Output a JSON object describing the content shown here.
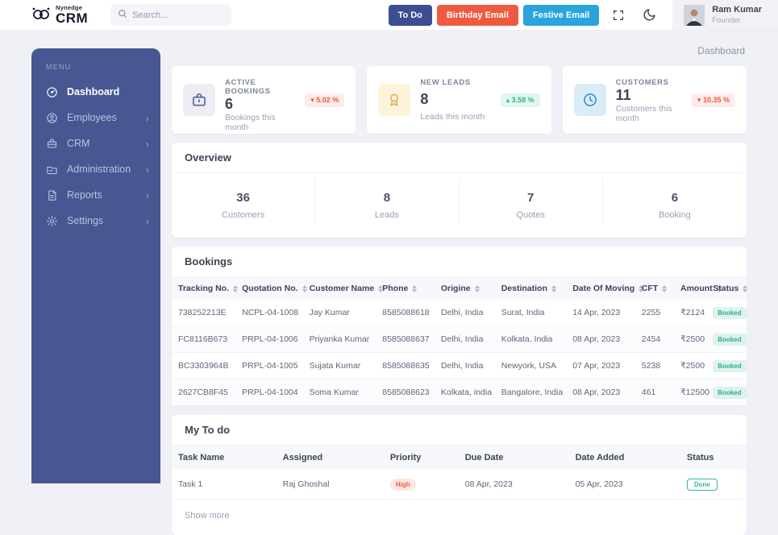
{
  "header": {
    "logo": {
      "brand_top": "Nynedge",
      "brand_main": "CRM"
    },
    "search": {
      "placeholder": "Search..."
    },
    "buttons": [
      {
        "label": "To Do",
        "color": "#3c4d90"
      },
      {
        "label": "Birthday Email",
        "color": "#ee5a40"
      },
      {
        "label": "Festive Email",
        "color": "#29a4dc"
      }
    ],
    "user": {
      "name": "Ram Kumar",
      "role": "Founder"
    }
  },
  "breadcrumb": "Dashboard",
  "sidebar": {
    "menu_label": "MENU",
    "items": [
      {
        "label": "Dashboard",
        "icon": "dashboard-icon",
        "active": true,
        "has_children": false
      },
      {
        "label": "Employees",
        "icon": "employees-icon",
        "active": false,
        "has_children": true
      },
      {
        "label": "CRM",
        "icon": "crm-icon",
        "active": false,
        "has_children": true
      },
      {
        "label": "Administration",
        "icon": "administration-icon",
        "active": false,
        "has_children": true
      },
      {
        "label": "Reports",
        "icon": "reports-icon",
        "active": false,
        "has_children": true
      },
      {
        "label": "Settings",
        "icon": "settings-icon",
        "active": false,
        "has_children": true
      }
    ]
  },
  "stats": [
    {
      "label": "ACTIVE BOOKINGS",
      "value": "6",
      "sub": "Bookings this month",
      "change": "5.02 %",
      "direction": "down",
      "badge_color": "#f0583d",
      "badge_bg": "#fdecea",
      "icon": "briefcase-icon",
      "icon_color": "#47579e",
      "icon_bg": "#ededf3"
    },
    {
      "label": "NEW LEADS",
      "value": "8",
      "sub": "Leads this month",
      "change": "3.58 %",
      "direction": "up",
      "badge_color": "#2eb597",
      "badge_bg": "#e1f6ef",
      "icon": "award-icon",
      "icon_color": "#ddae4b",
      "icon_bg": "#fdf3da"
    },
    {
      "label": "CUSTOMERS",
      "value": "11",
      "sub": "Customers this month",
      "change": "10.35 %",
      "direction": "down",
      "badge_color": "#f0583d",
      "badge_bg": "#fdecea",
      "icon": "clock-icon",
      "icon_color": "#3585c6",
      "icon_bg": "#d9ecf8"
    }
  ],
  "overview": {
    "title": "Overview",
    "metrics": [
      {
        "value": "36",
        "label": "Customers"
      },
      {
        "value": "8",
        "label": "Leads"
      },
      {
        "value": "7",
        "label": "Quotes"
      },
      {
        "value": "6",
        "label": "Booking"
      }
    ]
  },
  "bookings": {
    "title": "Bookings",
    "columns": [
      "Tracking No.",
      "Quotation No.",
      "Customer Name",
      "Phone",
      "Origine",
      "Destination",
      "Date Of Moving",
      "CFT",
      "Amount",
      "Status"
    ],
    "col_widths": [
      "11%",
      "11.6%",
      "12.6%",
      "10.1%",
      "10.4%",
      "12.3%",
      "11.9%",
      "6.7%",
      "5.6%",
      "6.9%"
    ],
    "rows": [
      [
        "738252213E",
        "NCPL-04-1008",
        "Jay Kumar",
        "8585088618",
        "Delhi, India",
        "Surat, India",
        "14 Apr, 2023",
        "2255",
        "₹2124",
        "Booked"
      ],
      [
        "FC8116B673",
        "PRPL-04-1006",
        "Priyanka Kumar",
        "8585088637",
        "Delhi, India",
        "Kolkata, India",
        "08 Apr, 2023",
        "2454",
        "₹2500",
        "Booked"
      ],
      [
        "BC3303964B",
        "PRPL-04-1005",
        "Sujata Kumar",
        "8585088635",
        "Delhi, India",
        "Newyork, USA",
        "07 Apr, 2023",
        "5238",
        "₹2500",
        "Booked"
      ],
      [
        "2627CB8F45",
        "PRPL-04-1004",
        "Soma Kumar",
        "8585088623",
        "Kolkata, india",
        "Bangalore, India",
        "08 Apr, 2023",
        "461",
        "₹12500",
        "Booked"
      ]
    ]
  },
  "todo": {
    "title": "My To do",
    "columns": [
      "Task Name",
      "Assigned",
      "Priority",
      "Due Date",
      "Date Added",
      "Status"
    ],
    "col_widths": [
      "18%",
      "18.5%",
      "12.9%",
      "19%",
      "19.2%",
      "11.4%"
    ],
    "rows": [
      [
        "Task 1",
        "Raj Ghoshal",
        "High",
        "08 Apr, 2023",
        "05 Apr, 2023",
        "Done"
      ]
    ],
    "show_more": "Show more"
  },
  "colors": {
    "sidebar_bg": "#475791",
    "page_bg": "#f0f1f6",
    "accent_red": "#ee5a40",
    "accent_blue": "#29a4dc",
    "accent_navy": "#3c4d90",
    "status_teal": "#31ab90"
  }
}
